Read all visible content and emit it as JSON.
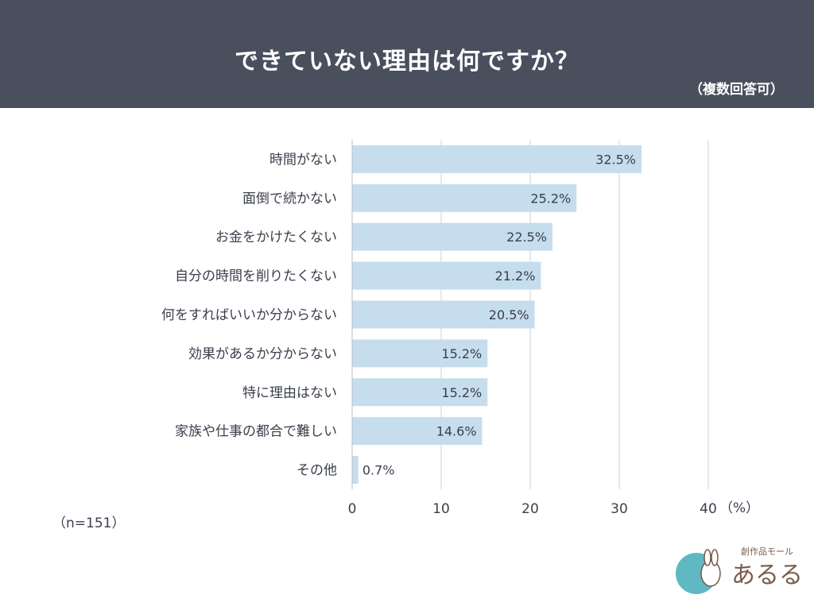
{
  "header": {
    "title": "できていない理由は何ですか？",
    "subtitle": "（複数回答可）"
  },
  "chart_data": {
    "type": "bar",
    "orientation": "horizontal",
    "categories": [
      "時間がない",
      "面倒で続かない",
      "お金をかけたくない",
      "自分の時間を削りたくない",
      "何をすればいいか分からない",
      "効果があるか分からない",
      "特に理由はない",
      "家族や仕事の都合で難しい",
      "その他"
    ],
    "values": [
      32.5,
      25.2,
      22.5,
      21.2,
      20.5,
      15.2,
      15.2,
      14.6,
      0.7
    ],
    "value_labels": [
      "32.5%",
      "25.2%",
      "22.5%",
      "21.2%",
      "20.5%",
      "15.2%",
      "15.2%",
      "14.6%",
      "0.7%"
    ],
    "xlim": [
      0,
      40
    ],
    "xticks": [
      0,
      10,
      20,
      30,
      40
    ],
    "xtick_labels": [
      "0",
      "10",
      "20",
      "30",
      "40"
    ],
    "x_unit": "（%）",
    "grid": true,
    "bar_color": "#c6dded"
  },
  "footnote": "（n=151）",
  "logo": {
    "tagline": "創作品モール",
    "name": "あるる"
  }
}
